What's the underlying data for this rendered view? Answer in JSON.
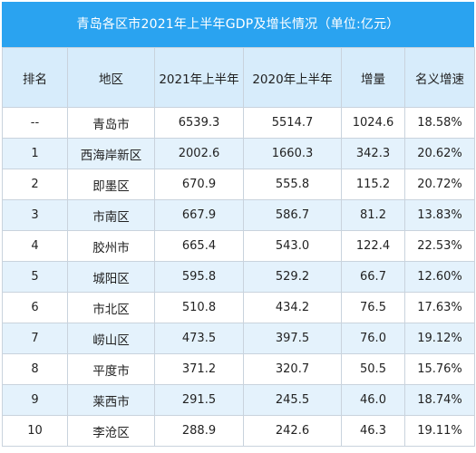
{
  "title": "青岛各区市2021年上半年GDP及增长情况（单位:亿元）",
  "colors": {
    "header_bar": "#2aa3f0",
    "column_header_bg": "#d7ecfb",
    "alt_row_bg": "#e4f2fc"
  },
  "table": {
    "headers": [
      "排名",
      "地区",
      "2021年上半年",
      "2020年上半年",
      "增量",
      "名义增速"
    ],
    "rows": [
      {
        "rank": "--",
        "region": "青岛市",
        "h1_2021": "6539.3",
        "h1_2020": "5514.7",
        "increase": "1024.6",
        "growth": "18.58%"
      },
      {
        "rank": "1",
        "region": "西海岸新区",
        "h1_2021": "2002.6",
        "h1_2020": "1660.3",
        "increase": "342.3",
        "growth": "20.62%"
      },
      {
        "rank": "2",
        "region": "即墨区",
        "h1_2021": "670.9",
        "h1_2020": "555.8",
        "increase": "115.2",
        "growth": "20.72%"
      },
      {
        "rank": "3",
        "region": "市南区",
        "h1_2021": "667.9",
        "h1_2020": "586.7",
        "increase": "81.2",
        "growth": "13.83%"
      },
      {
        "rank": "4",
        "region": "胶州市",
        "h1_2021": "665.4",
        "h1_2020": "543.0",
        "increase": "122.4",
        "growth": "22.53%"
      },
      {
        "rank": "5",
        "region": "城阳区",
        "h1_2021": "595.8",
        "h1_2020": "529.2",
        "increase": "66.7",
        "growth": "12.60%"
      },
      {
        "rank": "6",
        "region": "市北区",
        "h1_2021": "510.8",
        "h1_2020": "434.2",
        "increase": "76.5",
        "growth": "17.63%"
      },
      {
        "rank": "7",
        "region": "崂山区",
        "h1_2021": "473.5",
        "h1_2020": "397.5",
        "increase": "76.0",
        "growth": "19.12%"
      },
      {
        "rank": "8",
        "region": "平度市",
        "h1_2021": "371.2",
        "h1_2020": "320.7",
        "increase": "50.5",
        "growth": "15.76%"
      },
      {
        "rank": "9",
        "region": "莱西市",
        "h1_2021": "291.5",
        "h1_2020": "245.5",
        "increase": "46.0",
        "growth": "18.74%"
      },
      {
        "rank": "10",
        "region": "李沧区",
        "h1_2021": "288.9",
        "h1_2020": "242.6",
        "increase": "46.3",
        "growth": "19.11%"
      }
    ]
  }
}
